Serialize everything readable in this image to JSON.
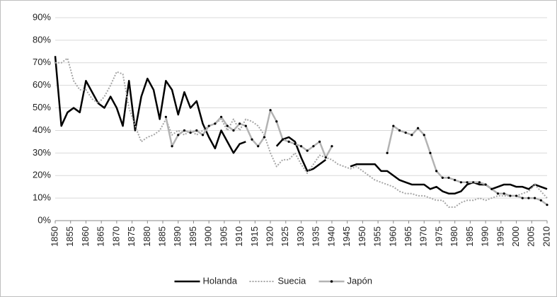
{
  "chart_data": {
    "type": "line",
    "x": [
      1850,
      1852,
      1854,
      1856,
      1858,
      1860,
      1862,
      1864,
      1866,
      1868,
      1870,
      1872,
      1874,
      1876,
      1878,
      1880,
      1882,
      1884,
      1886,
      1888,
      1890,
      1892,
      1894,
      1896,
      1898,
      1900,
      1902,
      1904,
      1906,
      1908,
      1910,
      1912,
      1914,
      1916,
      1918,
      1920,
      1922,
      1924,
      1926,
      1928,
      1930,
      1932,
      1934,
      1936,
      1938,
      1940,
      1942,
      1944,
      1946,
      1948,
      1950,
      1952,
      1954,
      1956,
      1958,
      1960,
      1962,
      1964,
      1966,
      1968,
      1970,
      1972,
      1974,
      1976,
      1978,
      1980,
      1982,
      1984,
      1986,
      1988,
      1990,
      1992,
      1994,
      1996,
      1998,
      2000,
      2002,
      2004,
      2006,
      2008,
      2010
    ],
    "series": [
      {
        "name": "Holanda",
        "color": "#000000",
        "width": 2.5,
        "dash": "solid",
        "marker": false,
        "values": [
          73,
          42,
          48,
          50,
          48,
          62,
          57,
          52,
          50,
          55,
          50,
          42,
          62,
          40,
          55,
          63,
          58,
          45,
          62,
          58,
          47,
          57,
          50,
          53,
          43,
          37,
          32,
          40,
          35,
          30,
          34,
          35,
          null,
          null,
          null,
          null,
          33,
          36,
          37,
          35,
          28,
          22,
          23,
          25,
          27,
          null,
          null,
          null,
          24,
          25,
          25,
          25,
          25,
          22,
          22,
          20,
          18,
          17,
          16,
          16,
          16,
          14,
          15,
          13,
          12,
          12,
          13,
          16,
          17,
          16,
          16,
          14,
          15,
          16,
          16,
          15,
          15,
          14,
          16,
          15,
          14
        ]
      },
      {
        "name": "Suecia",
        "color": "#a6a6a6",
        "width": 2,
        "dash": "dotted",
        "marker": false,
        "values": [
          70,
          70,
          72,
          62,
          58,
          58,
          54,
          52,
          55,
          60,
          66,
          65,
          50,
          42,
          35,
          37,
          38,
          40,
          45,
          38,
          40,
          38,
          40,
          38,
          40,
          42,
          43,
          45,
          40,
          45,
          40,
          45,
          44,
          42,
          38,
          30,
          24,
          27,
          27,
          30,
          25,
          21,
          25,
          29,
          28,
          27,
          25,
          24,
          23,
          24,
          22,
          20,
          18,
          17,
          16,
          15,
          13,
          12,
          12,
          11,
          11,
          10,
          9,
          9,
          6,
          6,
          8,
          9,
          9,
          10,
          9,
          10,
          11,
          11,
          11,
          11,
          12,
          13,
          16,
          13,
          10
        ]
      },
      {
        "name": "Japón",
        "color": "#b3b3b3",
        "width": 2.5,
        "dash": "solid",
        "marker": true,
        "values": [
          null,
          null,
          null,
          null,
          null,
          null,
          null,
          null,
          null,
          null,
          null,
          null,
          null,
          null,
          null,
          null,
          null,
          null,
          46,
          33,
          38,
          40,
          39,
          40,
          38,
          42,
          43,
          46,
          42,
          40,
          43,
          42,
          36,
          33,
          37,
          49,
          44,
          36,
          35,
          34,
          33,
          31,
          33,
          35,
          28,
          33,
          null,
          null,
          null,
          null,
          null,
          null,
          null,
          null,
          30,
          42,
          40,
          39,
          38,
          41,
          38,
          30,
          22,
          19,
          19,
          18,
          17,
          17,
          17,
          17,
          16,
          14,
          12,
          12,
          11,
          11,
          10,
          10,
          10,
          9,
          7
        ]
      }
    ],
    "xlim": [
      1850,
      2010
    ],
    "xticks": [
      1850,
      1855,
      1860,
      1865,
      1870,
      1875,
      1880,
      1885,
      1890,
      1895,
      1900,
      1905,
      1910,
      1915,
      1920,
      1925,
      1930,
      1935,
      1940,
      1945,
      1950,
      1955,
      1960,
      1965,
      1970,
      1975,
      1980,
      1985,
      1990,
      1995,
      2000,
      2005,
      2010
    ],
    "ylim": [
      0,
      90
    ],
    "yticks": [
      {
        "value": 0,
        "label": "0%"
      },
      {
        "value": 10,
        "label": "10%"
      },
      {
        "value": 20,
        "label": "20%"
      },
      {
        "value": 30,
        "label": "30%"
      },
      {
        "value": 40,
        "label": "40%"
      },
      {
        "value": 50,
        "label": "50%"
      },
      {
        "value": 60,
        "label": "60%"
      },
      {
        "value": 70,
        "label": "70%"
      },
      {
        "value": 80,
        "label": "80%"
      },
      {
        "value": 90,
        "label": "90%"
      }
    ],
    "grid": true,
    "legend": "bottom"
  }
}
